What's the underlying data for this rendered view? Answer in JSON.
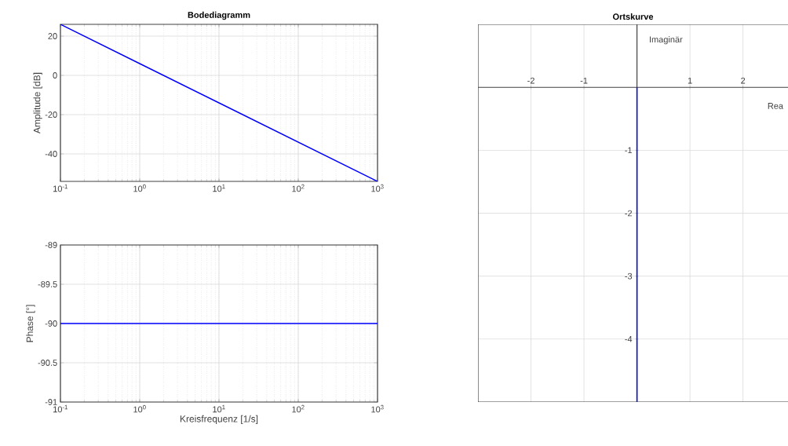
{
  "chart_data": [
    {
      "type": "line",
      "title": "Bodediagramm",
      "ylabel": "Amplitude [dB]",
      "log": "x",
      "grid": true,
      "xlim": [
        0.1,
        1000
      ],
      "ylim": [
        -54,
        26
      ],
      "xticks": [
        {
          "value": 0.1,
          "label": "10$^{-1}$"
        },
        {
          "value": 1,
          "label": "10$^{0}$"
        },
        {
          "value": 10,
          "label": "10$^{1}$"
        },
        {
          "value": 100,
          "label": "10$^{2}$"
        },
        {
          "value": 1000,
          "label": "10$^{3}$"
        }
      ],
      "yticks": [
        -40,
        -20,
        0,
        20
      ],
      "series": [
        {
          "color": "#0000ff",
          "x": [
            0.1,
            1,
            10,
            100,
            1000
          ],
          "values": [
            26,
            6,
            -14,
            -34,
            -54
          ]
        }
      ]
    },
    {
      "type": "line",
      "ylabel": "Phase [°]",
      "xlabel": "Kreisfrequenz [1/s]",
      "log": "x",
      "grid": true,
      "xlim": [
        0.1,
        1000
      ],
      "ylim": [
        -91,
        -89
      ],
      "xticks": [
        {
          "value": 0.1,
          "label": "10$^{-1}$"
        },
        {
          "value": 1,
          "label": "10$^{0}$"
        },
        {
          "value": 10,
          "label": "10$^{1}$"
        },
        {
          "value": 100,
          "label": "10$^{2}$"
        },
        {
          "value": 1000,
          "label": "10$^{3}$"
        }
      ],
      "yticks": [
        -91,
        -90.5,
        -90,
        -89.5,
        -89
      ],
      "series": [
        {
          "color": "#0000ff",
          "x": [
            0.1,
            1000
          ],
          "values": [
            -90,
            -90
          ]
        }
      ]
    },
    {
      "type": "line",
      "title": "Ortskurve",
      "xlabel": "Rea",
      "ylabel": "Imaginär",
      "grid": true,
      "xlim": [
        -3,
        2.85
      ],
      "ylim": [
        -5,
        1
      ],
      "xticks": [
        -2,
        -1,
        1,
        2
      ],
      "yticks": [
        -1,
        -2,
        -3,
        -4
      ],
      "series": [
        {
          "color": "#0000ff",
          "x": [
            0,
            0
          ],
          "values": [
            0,
            -5
          ]
        }
      ]
    }
  ]
}
